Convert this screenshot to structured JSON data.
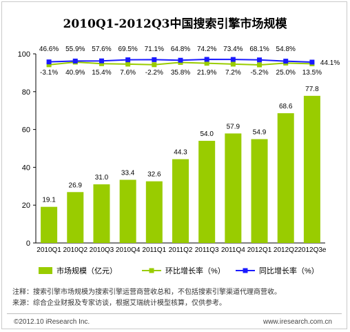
{
  "chart_data": {
    "type": "bar",
    "title": "2010Q1-2012Q3中国搜索引擎市场规模",
    "categories": [
      "2010Q1",
      "2010Q2",
      "2010Q3",
      "2010Q4",
      "2011Q1",
      "2011Q2",
      "2011Q3",
      "2011Q4",
      "2012Q1",
      "2012Q2",
      "2012Q3e"
    ],
    "series": [
      {
        "name": "市场规模（亿元）",
        "type": "bar",
        "color": "#99cc00",
        "values": [
          19.1,
          26.9,
          31.0,
          33.4,
          32.6,
          44.3,
          54.0,
          57.9,
          54.9,
          68.6,
          77.8
        ],
        "labels": [
          "19.1",
          "26.9",
          "31.0",
          "33.4",
          "32.6",
          "44.3",
          "54.0",
          "57.9",
          "54.9",
          "68.6",
          "77.8"
        ]
      },
      {
        "name": "环比增长率（%）",
        "type": "line",
        "color": "#99cc00",
        "values": [
          -3.1,
          40.9,
          15.4,
          7.6,
          -2.2,
          35.8,
          21.9,
          7.2,
          -5.2,
          25.0,
          13.5
        ],
        "labels": [
          "-3.1%",
          "40.9%",
          "15.4%",
          "7.6%",
          "-2.2%",
          "35.8%",
          "21.9%",
          "7.2%",
          "-5.2%",
          "25.0%",
          "13.5%"
        ]
      },
      {
        "name": "同比增长率（%）",
        "type": "line",
        "color": "#1a1aff",
        "values": [
          46.6,
          55.9,
          57.6,
          69.5,
          71.1,
          64.8,
          74.2,
          73.4,
          68.1,
          54.8,
          44.1
        ],
        "labels": [
          "46.6%",
          "55.9%",
          "57.6%",
          "69.5%",
          "71.1%",
          "64.8%",
          "74.2%",
          "73.4%",
          "68.1%",
          "54.8%",
          "44.1%"
        ]
      }
    ],
    "ylim": [
      0,
      100
    ],
    "yticks": [
      0,
      20,
      40,
      60,
      80,
      100
    ],
    "legend": "bottom",
    "grid": false
  },
  "notes": {
    "line1": "注释：搜索引擎市场规模为搜索引擎运营商营收总和，不包括搜索引擎渠道代理商营收。",
    "line2": "来源：综合企业财报及专家访谈，根据艾瑞统计模型核算，仅供参考。"
  },
  "footer": {
    "copyright": "©2012.10 iResearch Inc.",
    "site": "www.iresearch.com.cn"
  }
}
